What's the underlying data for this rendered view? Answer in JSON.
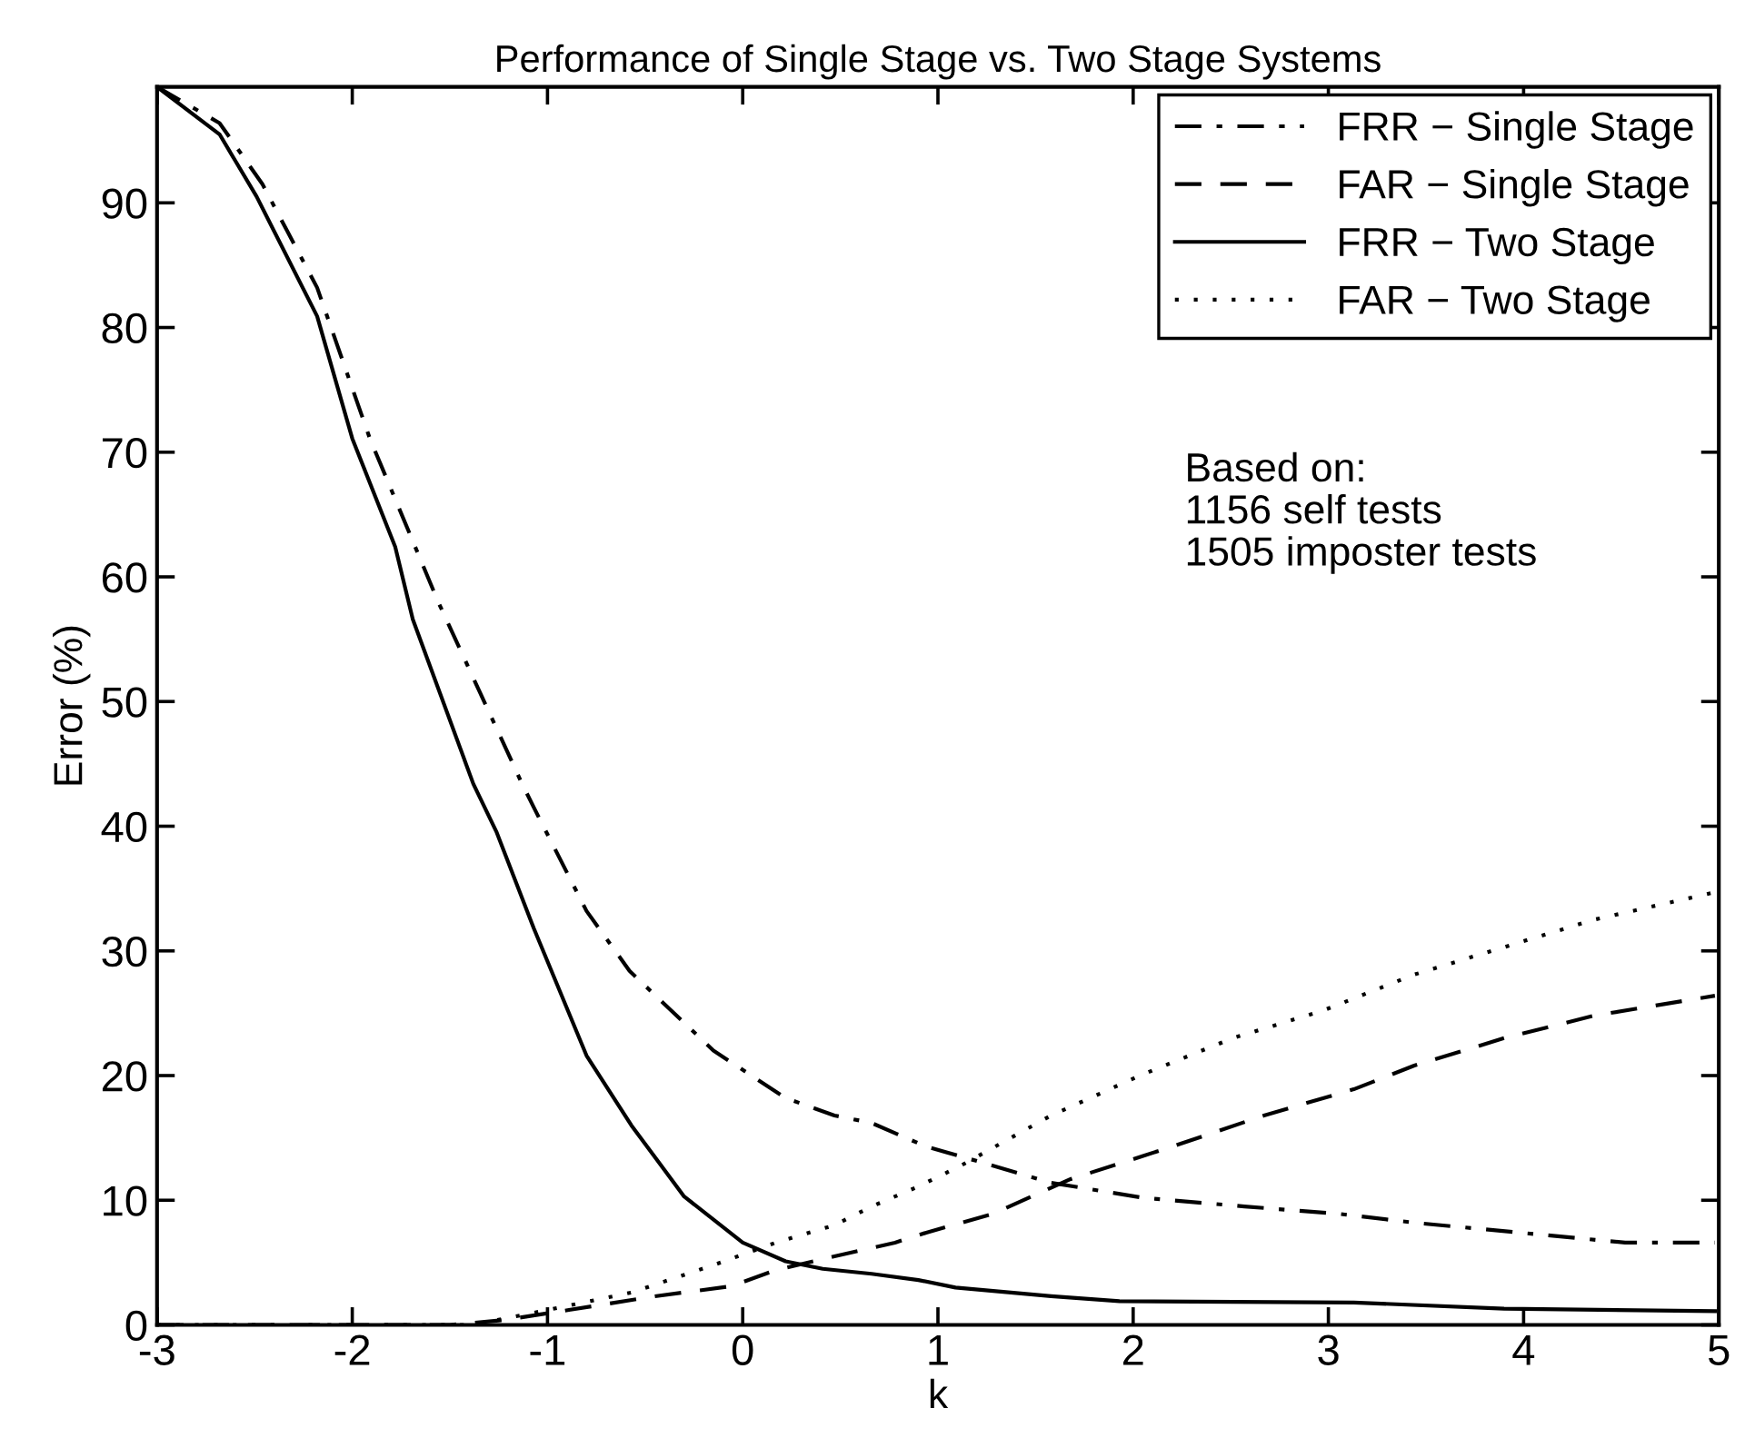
{
  "chart_data": {
    "type": "line",
    "title": "Performance of Single Stage vs. Two Stage Systems",
    "xlabel": "k",
    "ylabel": "Error (%)",
    "xlim": [
      -3,
      5
    ],
    "ylim": [
      0,
      99.3
    ],
    "xticks": [
      -3,
      -2,
      -1,
      0,
      1,
      2,
      3,
      4,
      5
    ],
    "yticks": [
      0,
      10,
      20,
      30,
      40,
      50,
      60,
      70,
      80,
      90
    ],
    "grid": false,
    "legend": "top right",
    "marker": "none",
    "annotations": [
      "Based on:\n1156 self tests\n1505 imposter tests"
    ],
    "series": [
      {
        "name": "FRR − Single Stage",
        "color": "#000000",
        "line_style": "dashdot",
        "x": [
          -3,
          -2.68,
          -2.46,
          -2.18,
          -1.91,
          -1.56,
          -1.13,
          -1.07,
          -0.8,
          -0.58,
          -0.15,
          0.22,
          0.47,
          0.66,
          0.94,
          1.21,
          1.58,
          2.05,
          2.57,
          3.06,
          3.44,
          4.05,
          4.52,
          4.98
        ],
        "values": [
          99.3,
          96.4,
          91.5,
          83.2,
          71.1,
          58,
          43.4,
          41.5,
          33.2,
          28.4,
          22,
          18.2,
          16.8,
          16.2,
          14.3,
          13.1,
          11.4,
          10.2,
          9.5,
          8.9,
          8.2,
          7.3,
          6.6,
          6.6
        ]
      },
      {
        "name": "FAR − Single Stage",
        "color": "#000000",
        "line_style": "dashed",
        "x": [
          -3,
          -1.5,
          -1.22,
          -0.89,
          -0.45,
          -0.06,
          0.17,
          0.47,
          0.78,
          0.94,
          1.28,
          1.68,
          2.2,
          2.67,
          3.13,
          3.44,
          3.9,
          4.36,
          4.98
        ],
        "values": [
          0,
          0,
          0.4,
          1.2,
          2.3,
          3.1,
          4.4,
          5.5,
          6.6,
          7.4,
          8.9,
          11.7,
          14.3,
          16.8,
          18.9,
          20.8,
          23,
          24.8,
          26.4
        ]
      },
      {
        "name": "FRR − Two Stage",
        "color": "#000000",
        "line_style": "solid",
        "x": [
          -3,
          -2.68,
          -2.49,
          -2.18,
          -2,
          -1.78,
          -1.69,
          -1.38,
          -1.26,
          -1.07,
          -0.8,
          -0.57,
          -0.3,
          0,
          0.22,
          0.41,
          0.66,
          0.9,
          1.09,
          1.58,
          1.93,
          3.13,
          3.9,
          4.98
        ],
        "values": [
          99.3,
          95.5,
          90.5,
          80.9,
          71.1,
          62.4,
          56.6,
          43.4,
          39.5,
          31.8,
          21.6,
          16,
          10.3,
          6.6,
          5.1,
          4.5,
          4.1,
          3.6,
          3,
          2.3,
          1.9,
          1.8,
          1.3,
          1.1
        ]
      },
      {
        "name": "FAR − Two Stage",
        "color": "#000000",
        "line_style": "dotted",
        "x": [
          -3,
          -1.38,
          -1,
          -0.57,
          -0.15,
          0.17,
          0.47,
          0.66,
          0.9,
          1.12,
          1.58,
          2.05,
          2.51,
          2.97,
          3.44,
          3.9,
          4.36,
          4.98
        ],
        "values": [
          0,
          0,
          1.2,
          2.6,
          4.8,
          6.6,
          8,
          9.5,
          11.1,
          12.8,
          16.8,
          20.1,
          23,
          25.2,
          28.1,
          30.3,
          32.5,
          34.7
        ]
      }
    ]
  }
}
